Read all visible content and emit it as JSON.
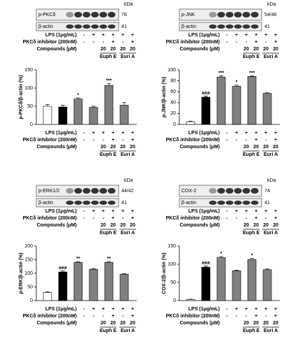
{
  "chart_data": [
    {
      "type": "bar",
      "y_label": "p-PKCδ/β-actin (%)",
      "ylim": [
        0,
        150
      ],
      "yticks": [
        0,
        50,
        100,
        150
      ],
      "values": [
        50,
        48,
        70,
        47,
        107,
        53
      ],
      "errors": [
        5,
        5,
        3,
        3,
        5,
        7
      ],
      "colors": [
        "#ffffff",
        "#000000",
        "#808080",
        "#808080",
        "#808080",
        "#808080"
      ],
      "annotations": [
        null,
        null,
        "*",
        null,
        "***",
        null
      ],
      "blot": {
        "unit": "kDa",
        "target": "p-PKCδ",
        "target_kda": "78",
        "control": "β-actin",
        "control_kda": "41"
      }
    },
    {
      "type": "bar",
      "y_label": "p-JNK/β-actin (%)",
      "ylim": [
        0,
        100
      ],
      "yticks": [
        0,
        20,
        40,
        60,
        80,
        100
      ],
      "values": [
        5,
        50,
        87,
        70,
        88,
        57
      ],
      "errors": [
        1,
        2,
        2,
        2,
        1,
        1
      ],
      "colors": [
        "#ffffff",
        "#000000",
        "#808080",
        "#808080",
        "#808080",
        "#808080"
      ],
      "annotations": [
        null,
        "###",
        "***",
        "*",
        "***",
        null
      ],
      "blot": {
        "unit": "kDa",
        "target": "p-JNK",
        "target_kda": "54/46",
        "control": "β-actin",
        "control_kda": "41"
      }
    },
    {
      "type": "bar",
      "y_label": "p-ERK/β-actin (%)",
      "ylim": [
        0,
        200
      ],
      "yticks": [
        0,
        50,
        100,
        150,
        200
      ],
      "values": [
        30,
        105,
        140,
        115,
        140,
        97
      ],
      "errors": [
        2,
        4,
        3,
        2,
        3,
        2
      ],
      "colors": [
        "#ffffff",
        "#000000",
        "#808080",
        "#808080",
        "#808080",
        "#808080"
      ],
      "annotations": [
        null,
        "###",
        "**",
        null,
        "**",
        null
      ],
      "blot": {
        "unit": "kDa",
        "target": "p-ERK1/2",
        "target_kda": "44/42",
        "control": "β-actin",
        "control_kda": "41"
      }
    },
    {
      "type": "bar",
      "y_label": "COX-2/β-actin (%)",
      "ylim": [
        0,
        150
      ],
      "yticks": [
        0,
        50,
        100,
        150
      ],
      "values": [
        3,
        92,
        118,
        82,
        113,
        85
      ],
      "errors": [
        1,
        3,
        3,
        2,
        3,
        2
      ],
      "colors": [
        "#ffffff",
        "#000000",
        "#808080",
        "#808080",
        "#808080",
        "#808080"
      ],
      "annotations": [
        null,
        "###",
        "*",
        null,
        "*",
        null
      ],
      "blot": {
        "unit": "kDa",
        "target": "COX-2",
        "target_kda": "74",
        "control": "β-actin",
        "control_kda": "41"
      }
    }
  ],
  "treatments": {
    "rows": [
      {
        "label": "LPS (1μg/mL)",
        "marks": [
          "-",
          "+",
          "+",
          "+",
          "+",
          "+"
        ]
      },
      {
        "label": "PKCδ inhibitor (200nM)",
        "marks": [
          "-",
          "-",
          "-",
          "+",
          "-",
          "+"
        ]
      },
      {
        "label": "Compounds (μM)",
        "marks": [
          null,
          null,
          "20",
          "20",
          "20",
          "20"
        ]
      }
    ],
    "groups": [
      "Euph E",
      "Euri A"
    ]
  }
}
